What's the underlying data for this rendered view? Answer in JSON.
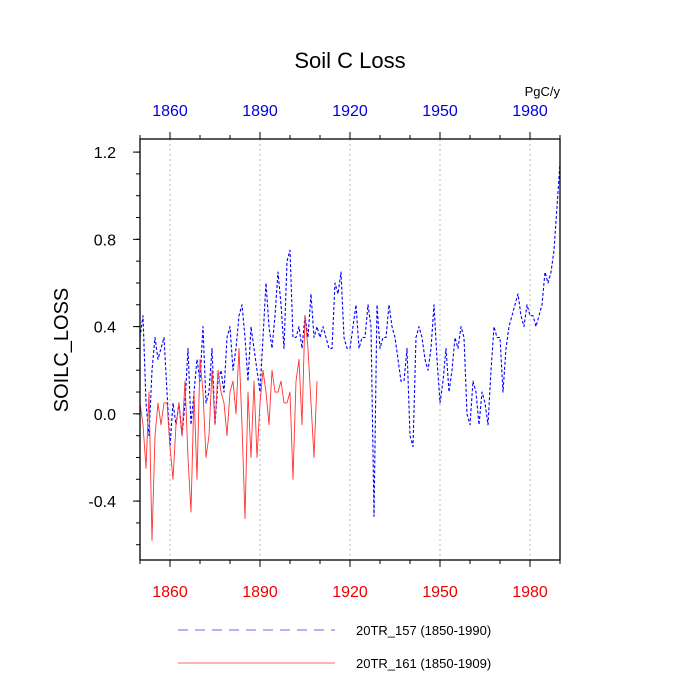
{
  "chart_data": {
    "type": "line",
    "title": "Soil C Loss",
    "ylabel": "SOILC_LOSS",
    "units": "PgC/y",
    "xlim": [
      1850,
      1990
    ],
    "ylim": [
      -0.67,
      1.26
    ],
    "ytick_labels": [
      "1.2",
      "0.8",
      "0.4",
      "0.0",
      "-0.4"
    ],
    "ytick_values": [
      1.2,
      0.8,
      0.4,
      0.0,
      -0.4
    ],
    "xtick_labels": [
      "1860",
      "1890",
      "1920",
      "1950",
      "1980"
    ],
    "xtick_values": [
      1860,
      1890,
      1920,
      1950,
      1980
    ],
    "grid": "vertical dotted",
    "colors": {
      "top_axis": "#0000dd",
      "bottom_axis": "#ee0000",
      "series1": "#0000ff",
      "series2": "#ff3333"
    },
    "series": [
      {
        "name": "20TR_157 (1850-1990)",
        "legend_label": "20TR_157 (1850-1990)",
        "style": "dashed",
        "x_start": 1850,
        "values": [
          0.35,
          0.45,
          0.05,
          -0.1,
          0.2,
          0.35,
          0.25,
          0.3,
          0.35,
          0.1,
          -0.15,
          0.05,
          -0.05,
          0.05,
          -0.1,
          0.05,
          0.3,
          -0.05,
          0.1,
          0.25,
          0.15,
          0.4,
          0.05,
          0.1,
          0.3,
          -0.05,
          0.15,
          0.2,
          0.1,
          0.35,
          0.4,
          0.2,
          0.3,
          0.45,
          0.5,
          0.35,
          0.15,
          0.4,
          0.3,
          0.2,
          0.1,
          0.35,
          0.6,
          0.4,
          0.3,
          0.45,
          0.65,
          0.5,
          0.3,
          0.7,
          0.75,
          0.35,
          0.35,
          0.4,
          0.3,
          0.45,
          0.35,
          0.55,
          0.35,
          0.4,
          0.35,
          0.4,
          0.35,
          0.3,
          0.3,
          0.6,
          0.55,
          0.65,
          0.35,
          0.3,
          0.3,
          0.4,
          0.5,
          0.3,
          0.35,
          0.35,
          0.5,
          0.4,
          -0.47,
          0.5,
          0.3,
          0.35,
          0.35,
          0.5,
          0.4,
          0.35,
          0.25,
          0.15,
          0.15,
          0.3,
          -0.1,
          -0.15,
          0.35,
          0.4,
          0.35,
          0.25,
          0.2,
          0.3,
          0.5,
          0.25,
          0.05,
          0.15,
          0.3,
          0.1,
          0.2,
          0.35,
          0.3,
          0.4,
          0.35,
          0.0,
          -0.05,
          0.15,
          0.1,
          -0.05,
          0.1,
          0.05,
          -0.05,
          0.2,
          0.4,
          0.35,
          0.35,
          0.1,
          0.3,
          0.4,
          0.45,
          0.5,
          0.55,
          0.45,
          0.4,
          0.5,
          0.45,
          0.45,
          0.4,
          0.45,
          0.5,
          0.65,
          0.6,
          0.65,
          0.75,
          0.95,
          1.15
        ]
      },
      {
        "name": "20TR_161 (1850-1909)",
        "legend_label": "20TR_161 (1850-1909)",
        "style": "solid",
        "x_start": 1850,
        "values": [
          0.05,
          -0.05,
          -0.25,
          0.1,
          -0.58,
          -0.1,
          0.05,
          -0.05,
          0.05,
          0.05,
          -0.15,
          -0.3,
          -0.05,
          0.05,
          -0.1,
          0.15,
          -0.2,
          -0.45,
          0.1,
          -0.3,
          0.25,
          0.1,
          -0.2,
          -0.1,
          0.2,
          -0.05,
          0.2,
          0.1,
          0.05,
          -0.1,
          0.1,
          0.15,
          0.0,
          0.3,
          -0.05,
          -0.48,
          0.1,
          -0.2,
          0.15,
          -0.2,
          0.05,
          0.2,
          0.1,
          -0.05,
          0.2,
          0.1,
          0.1,
          0.15,
          0.05,
          0.05,
          0.1,
          -0.3,
          0.15,
          0.25,
          -0.05,
          0.45,
          0.3,
          0.05,
          -0.2,
          0.15
        ]
      }
    ]
  }
}
